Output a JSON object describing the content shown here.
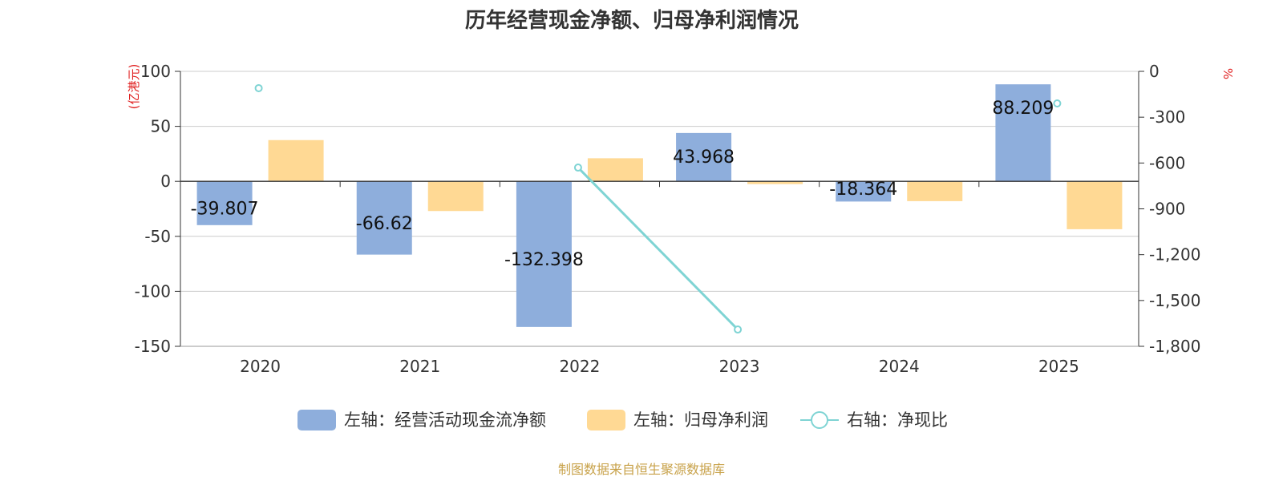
{
  "chart_data": {
    "title": "历年经营现金净额、归母净利润情况",
    "type": "bar",
    "categories": [
      "2020",
      "2021",
      "2022",
      "2023",
      "2024",
      "2025"
    ],
    "left_axis": {
      "unit": "(亿港元)",
      "min": -150,
      "max": 100,
      "ticks": [
        100,
        50,
        0,
        -50,
        -100,
        -150
      ],
      "tick_labels": [
        "100",
        "50",
        "0",
        "-50",
        "-100",
        "-150"
      ]
    },
    "right_axis": {
      "unit": "%",
      "min": -1800,
      "max": 0,
      "ticks": [
        0,
        -300,
        -600,
        -900,
        -1200,
        -1500,
        -1800
      ],
      "tick_labels": [
        "0",
        "-300",
        "-600",
        "-900",
        "-1,200",
        "-1,500",
        "-1,800"
      ]
    },
    "series": [
      {
        "name": "左轴：经营活动现金流净额",
        "type": "bar",
        "axis": "left",
        "color": "#8eaedc",
        "values": [
          -39.807,
          -66.62,
          -132.398,
          43.968,
          -18.364,
          88.209
        ],
        "labels": [
          "-39.807",
          "-66.62",
          "-132.398",
          "43.968",
          "-18.364",
          "88.209"
        ]
      },
      {
        "name": "左轴：归母净利润",
        "type": "bar",
        "axis": "left",
        "color": "#ffd994",
        "values": [
          37.5,
          -27,
          21,
          -2.5,
          -18,
          -43.5
        ]
      },
      {
        "name": "右轴：净现比",
        "type": "line",
        "axis": "right",
        "color": "#7fd4d4",
        "values": [
          -110,
          null,
          -630,
          -1690,
          null,
          -210
        ],
        "connected_segment": [
          2,
          3
        ]
      }
    ],
    "grid": true,
    "legend_position": "bottom-center"
  },
  "source": {
    "text": "制图数据来自恒生聚源数据库",
    "color": "#c8a24a"
  },
  "colors": {
    "left_unit": "#e02020",
    "right_unit": "#e02020"
  }
}
